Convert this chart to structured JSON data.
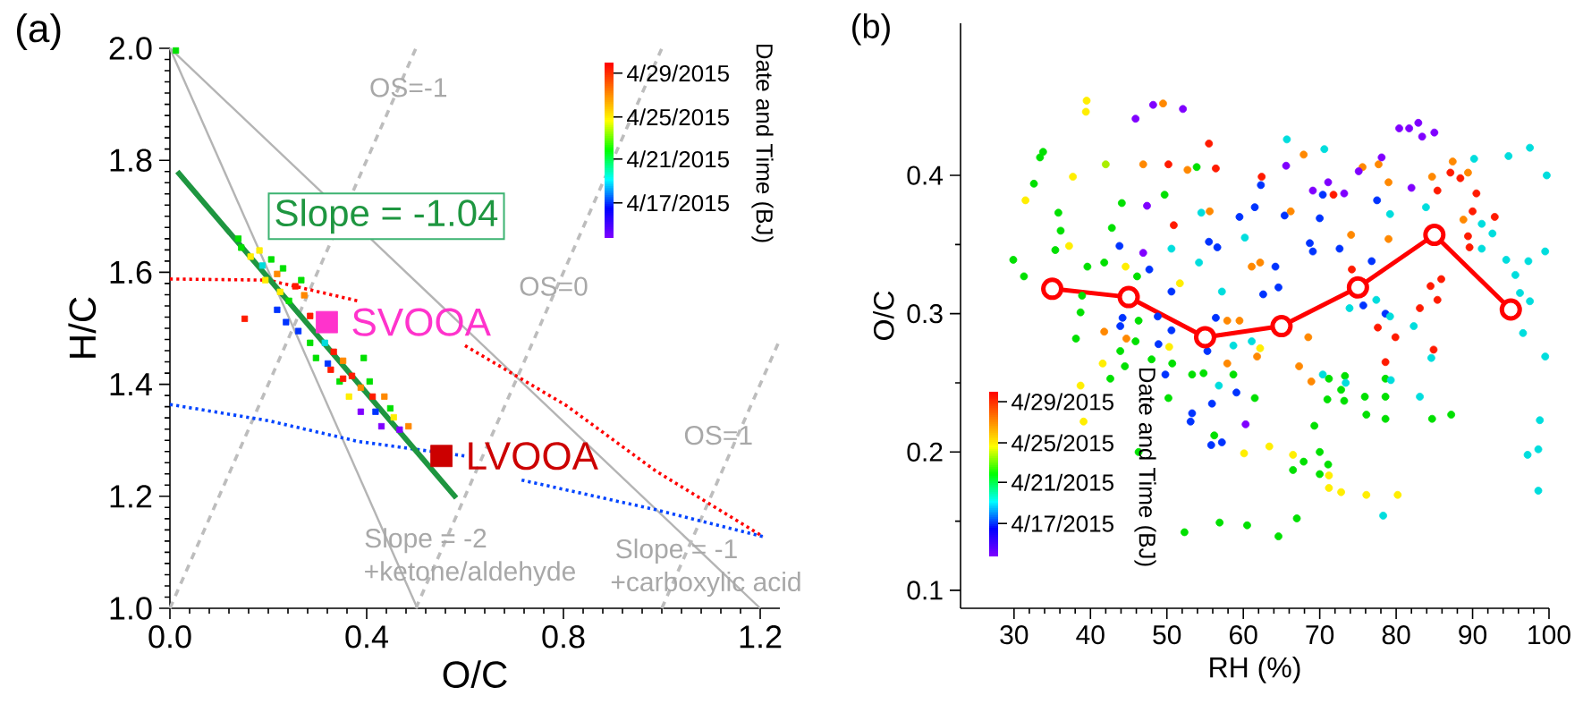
{
  "chart_data": [
    {
      "type": "scatter",
      "title": "(a)",
      "xlabel": "O/C",
      "ylabel": "H/C",
      "clabel": "Date and Time (BJ)",
      "xlim": [
        0,
        1.24
      ],
      "ylim": [
        1.0,
        2.0
      ],
      "xticks": [
        {
          "value": 0,
          "label": "0.0"
        },
        0.4,
        0.8,
        1.2
      ],
      "yticks": [
        {
          "value": 1,
          "label": "1.0"
        },
        1.2,
        1.4,
        1.6,
        1.8,
        {
          "value": 2,
          "label": "2.0"
        }
      ],
      "series": [
        {
          "type": "line",
          "color": "#b4b4b4",
          "x": [
            0,
            1.2
          ],
          "values": [
            2.0,
            1.0
          ]
        },
        {
          "type": "line",
          "color": "#b4b4b4",
          "x": [
            0,
            0.503
          ],
          "values": [
            2.0,
            1.0
          ]
        },
        {
          "type": "line",
          "color": "#bdbdbd",
          "line_style": "dashed",
          "x": [
            0.0,
            0.5
          ],
          "values": [
            1.0,
            2.0
          ]
        },
        {
          "type": "line",
          "color": "#bdbdbd",
          "line_style": "dashed",
          "x": [
            0.5,
            1.0
          ],
          "values": [
            1.0,
            2.0
          ]
        },
        {
          "type": "line",
          "color": "#bdbdbd",
          "line_style": "dashed",
          "x": [
            1.0,
            1.24
          ],
          "values": [
            1.0,
            1.48
          ]
        },
        {
          "type": "line",
          "color": "#ff0000",
          "line_style": "dotted",
          "x": [
            0,
            0.2,
            0.382,
            0.45,
            0.6,
            0.806,
            0.988,
            1.206
          ],
          "values": [
            1.588,
            1.586,
            1.549,
            null,
            1.469,
            1.362,
            1.245,
            1.128
          ]
        },
        {
          "type": "line",
          "color": "#0044ff",
          "line_style": "dotted",
          "x": [
            0,
            0.2,
            0.382,
            0.6,
            0.65,
            0.715,
            0.988,
            1.206
          ],
          "values": [
            1.364,
            1.335,
            1.298,
            1.272,
            null,
            1.229,
            1.176,
            1.128
          ]
        },
        {
          "marker": "square",
          "x": [
            0.012,
            0.152,
            0.139,
            0.145,
            0.164,
            0.188,
            0.206,
            0.194,
            0.218,
            0.224,
            0.218,
            0.242,
            0.236,
            0.255,
            0.267,
            0.273,
            0.261,
            0.285,
            0.285,
            0.297,
            0.315,
            0.333,
            0.327,
            0.352,
            0.37,
            0.345,
            0.394,
            0.388,
            0.406,
            0.412,
            0.436,
            0.388,
            0.418,
            0.448,
            0.43,
            0.467,
            0.485,
            0.455,
            0.364,
            0.352,
            0.321,
            0.182,
            0.23
          ],
          "values": [
            1.996,
            1.517,
            1.66,
            1.644,
            1.628,
            1.612,
            1.623,
            1.586,
            1.597,
            1.565,
            1.533,
            1.549,
            1.511,
            1.575,
            1.586,
            1.559,
            1.495,
            1.522,
            1.474,
            1.447,
            1.474,
            1.458,
            1.426,
            1.442,
            1.415,
            1.405,
            1.447,
            1.394,
            1.405,
            1.378,
            1.378,
            1.351,
            1.351,
            1.357,
            1.325,
            1.319,
            1.325,
            1.341,
            1.378,
            1.41,
            1.437,
            1.639,
            1.607
          ],
          "colors": [
            "#00e000",
            "#ff1a00",
            "#00e000",
            "#00e000",
            "#ffee00",
            "#00dddd",
            "#00e000",
            "#ffee00",
            "#ff8800",
            "#ffee00",
            "#0033ff",
            "#00e000",
            "#0033ff",
            "#ff1a00",
            "#00e000",
            "#ff8800",
            "#0033ff",
            "#ff1a00",
            "#00e000",
            "#00e000",
            "#00dddd",
            "#ff1a00",
            "#ff1a00",
            "#ff8800",
            "#ff1a00",
            "#00e000",
            "#00e000",
            "#ff8800",
            "#00e000",
            "#ff1a00",
            "#ff8800",
            "#7f00ff",
            "#0033ff",
            "#00e000",
            "#7f00ff",
            "#7f00ff",
            "#ff8800",
            "#ffee00",
            "#ffee00",
            "#ff1a00",
            "#0033ff",
            "#ffee00",
            "#00e000"
          ]
        },
        {
          "type": "line",
          "color": "#1e9640",
          "x": [
            0.015,
            0.582
          ],
          "values": [
            1.78,
            1.197
          ]
        },
        {
          "name": "SVOOA",
          "color": "#ff33cc",
          "marker": "square",
          "x": [
            0.319
          ],
          "values": [
            1.511
          ]
        },
        {
          "name": "LVOOA",
          "color": "#cc0000",
          "marker": "square",
          "x": [
            0.552
          ],
          "values": [
            1.272
          ]
        }
      ],
      "annotations": [
        "Slope = -1.04",
        "OS=-1",
        "OS=0",
        "OS=1",
        "Slope = -2",
        "+ketone/aldehyde",
        "Slope = -1",
        "+carboxylic acid",
        "4/29/2015",
        "4/25/2015",
        "4/21/2015",
        "4/17/2015"
      ]
    },
    {
      "type": "scatter",
      "title": "(b)",
      "xlabel": "RH (%)",
      "ylabel": "O/C",
      "clabel": "Date and Time (BJ)",
      "xlim": [
        23,
        100
      ],
      "ylim": [
        0.087,
        0.51
      ],
      "xticks": [
        30,
        40,
        50,
        60,
        70,
        80,
        90,
        100
      ],
      "yticks": [
        0.1,
        0.2,
        0.3,
        0.4
      ],
      "series": [
        {
          "marker": "circle",
          "x": [
            39.5,
            39.4,
            45.9,
            48.2,
            49.5,
            52.1,
            33.4,
            33.8,
            37.7,
            42.0,
            32.6,
            31.5,
            46.9,
            50.2,
            55.5,
            56.4,
            52.7,
            53.9,
            44.1,
            42.8,
            50.9,
            49.7,
            47.4,
            55.6,
            54.5,
            59.5,
            61.5,
            62.4,
            62.3,
            35.8,
            36.1,
            35.4,
            37.2,
            29.9,
            31.3,
            39.6,
            41.8,
            43.8,
            44.6,
            46.9,
            47.7,
            46.1,
            50.6,
            51.7,
            54.2,
            55.5,
            56.6,
            57.2,
            50.6,
            61.1,
            60.2,
            38.9,
            38.7,
            43.9,
            44.2,
            46.3,
            48.8,
            50.6,
            41.8,
            38.1,
            44.7,
            45.9,
            48.9,
            50.3,
            55.3,
            56.4,
            57.9,
            59.5,
            58.7,
            61.1,
            61.8,
            62.2,
            43.9,
            41.6,
            44.5,
            48.0,
            49.8,
            50.7,
            53.3,
            54.8,
            57.9,
            58.7,
            56.8,
            59.1,
            61.5,
            42.6,
            38.7,
            50.2,
            53.3,
            53.1,
            55.9,
            60.3,
            56.2,
            57.2,
            55.8,
            60.1,
            39.1,
            46.3,
            52.3,
            56.9,
            60.5,
            80.4,
            81.7,
            82.9,
            83.4,
            85.0,
            65.7,
            67.9,
            70.6,
            65.6,
            75.6,
            77.7,
            78.1,
            75.1,
            71.1,
            69.1,
            73.2,
            71.8,
            70.4,
            79.0,
            82.0,
            84.7,
            85.4,
            87.4,
            87.1,
            88.4,
            89.4,
            90.2,
            90.5,
            94.7,
            97.5,
            99.7,
            77.5,
            79.2,
            83.9,
            88.8,
            90.0,
            91.2,
            92.9,
            92.6,
            89.4,
            89.6,
            91.2,
            70.0,
            68.7,
            69.1,
            72.6,
            74.1,
            79.0,
            65.4,
            66.2,
            64.2,
            62.2,
            64.6,
            62.6,
            74.2,
            76.8,
            84.5,
            85.9,
            85.4,
            83.1,
            94.4,
            95.6,
            97.3,
            99.5,
            96.2,
            97.5,
            96.6,
            99.5,
            98.8,
            98.6,
            97.2,
            98.6,
            73.9,
            75.7,
            77.4,
            78.6,
            79.2,
            77.6,
            79.9,
            82.3,
            84.9,
            84.6,
            78.6,
            68.5,
            67.3,
            68.9,
            70.4,
            71.2,
            73.3,
            73.4,
            78.6,
            79.3,
            72.8,
            71.0,
            73.2,
            75.9,
            78.6,
            83.1,
            76.1,
            78.6,
            84.7,
            87.2,
            69.3,
            63.4,
            66.5,
            66.5,
            67.9,
            70.0,
            71.1,
            70.0,
            71.2,
            71.2,
            72.8,
            76.1,
            80.2,
            78.3,
            67.0,
            64.6
          ],
          "values": [
            0.454,
            0.446,
            0.441,
            0.451,
            0.452,
            0.448,
            0.413,
            0.417,
            0.399,
            0.408,
            0.394,
            0.382,
            0.408,
            0.408,
            0.423,
            0.405,
            0.404,
            0.406,
            0.38,
            0.362,
            0.364,
            0.386,
            0.378,
            0.374,
            0.373,
            0.37,
            0.377,
            0.399,
            0.393,
            0.373,
            0.36,
            0.346,
            0.349,
            0.339,
            0.327,
            0.334,
            0.337,
            0.349,
            0.334,
            0.344,
            0.332,
            0.327,
            0.347,
            0.322,
            0.337,
            0.352,
            0.348,
            0.316,
            0.316,
            0.334,
            0.355,
            0.313,
            0.301,
            0.291,
            0.297,
            0.295,
            0.298,
            0.288,
            0.287,
            0.282,
            0.282,
            0.28,
            0.278,
            0.276,
            0.273,
            0.297,
            0.295,
            0.295,
            0.277,
            0.28,
            0.269,
            0.275,
            0.273,
            0.264,
            0.262,
            0.267,
            0.256,
            0.264,
            0.256,
            0.257,
            0.264,
            0.256,
            0.248,
            0.243,
            0.239,
            0.253,
            0.248,
            0.239,
            0.228,
            0.222,
            0.235,
            0.22,
            0.212,
            0.207,
            0.205,
            0.199,
            0.222,
            0.2,
            0.142,
            0.149,
            0.147,
            0.434,
            0.434,
            0.438,
            0.428,
            0.431,
            0.426,
            0.415,
            0.419,
            0.407,
            0.406,
            0.408,
            0.413,
            0.403,
            0.395,
            0.389,
            0.387,
            0.386,
            0.386,
            0.395,
            0.391,
            0.399,
            0.389,
            0.41,
            0.402,
            0.398,
            0.402,
            0.412,
            0.387,
            0.414,
            0.42,
            0.4,
            0.382,
            0.372,
            0.377,
            0.368,
            0.374,
            0.365,
            0.37,
            0.358,
            0.356,
            0.348,
            0.347,
            0.369,
            0.351,
            0.345,
            0.347,
            0.357,
            0.354,
            0.371,
            0.374,
            0.334,
            0.337,
            0.319,
            0.314,
            0.332,
            0.338,
            0.32,
            0.325,
            0.31,
            0.304,
            0.339,
            0.328,
            0.338,
            0.345,
            0.315,
            0.309,
            0.286,
            0.269,
            0.223,
            0.202,
            0.198,
            0.172,
            0.304,
            0.306,
            0.31,
            0.3,
            0.298,
            0.29,
            0.283,
            0.291,
            0.274,
            0.268,
            0.265,
            0.283,
            0.262,
            0.251,
            0.256,
            0.253,
            0.255,
            0.25,
            0.253,
            0.252,
            0.245,
            0.238,
            0.237,
            0.24,
            0.24,
            0.24,
            0.227,
            0.224,
            0.224,
            0.227,
            0.219,
            0.204,
            0.198,
            0.187,
            0.193,
            0.2,
            0.191,
            0.184,
            0.183,
            0.174,
            0.171,
            0.169,
            0.169,
            0.154,
            0.152,
            0.139
          ],
          "colors": [
            "#ffee00",
            "#ffee00",
            "#7f00ff",
            "#7f00ff",
            "#ff8800",
            "#7f00ff",
            "#00e000",
            "#00e000",
            "#ffee00",
            "#aaee00",
            "#00e000",
            "#ffee00",
            "#ff8800",
            "#ff1a00",
            "#ff1a00",
            "#ff1a00",
            "#ff8800",
            "#00e000",
            "#00e000",
            "#00e000",
            "#ff1a00",
            "#00e000",
            "#7f00ff",
            "#ff8800",
            "#00dddd",
            "#0033ff",
            "#0033ff",
            "#ff1a00",
            "#0033ff",
            "#00e000",
            "#00e000",
            "#00e000",
            "#ffee00",
            "#00e000",
            "#00e000",
            "#00e000",
            "#00e000",
            "#0033ff",
            "#ffee00",
            "#7f00ff",
            "#0033ff",
            "#00e000",
            "#00dddd",
            "#ffee00",
            "#00dddd",
            "#0033ff",
            "#0033ff",
            "#00dddd",
            "#0033ff",
            "#ff8800",
            "#00dddd",
            "#00e000",
            "#00e000",
            "#0033ff",
            "#0033ff",
            "#00e000",
            "#0033ff",
            "#0033ff",
            "#ff8800",
            "#00e000",
            "#ff8800",
            "#00e000",
            "#0033ff",
            "#ffee00",
            "#0033ff",
            "#0033ff",
            "#ff8800",
            "#ff8800",
            "#00dddd",
            "#00dddd",
            "#ff8800",
            "#ffee00",
            "#00e000",
            "#ffee00",
            "#00e000",
            "#00e000",
            "#0033ff",
            "#00e000",
            "#00e000",
            "#00e000",
            "#ff8800",
            "#00e000",
            "#00dddd",
            "#0033ff",
            "#00e000",
            "#00e000",
            "#ffee00",
            "#00e000",
            "#0033ff",
            "#0033ff",
            "#0033ff",
            "#7f00ff",
            "#00e000",
            "#0033ff",
            "#0033ff",
            "#ffee00",
            "#ffee00",
            "#00e000",
            "#00e000",
            "#00e000",
            "#00e000",
            "#7f00ff",
            "#7f00ff",
            "#7f00ff",
            "#7f00ff",
            "#7f00ff",
            "#00dddd",
            "#ff8800",
            "#00dddd",
            "#7f00ff",
            "#ff8800",
            "#ff8800",
            "#7f00ff",
            "#7f00ff",
            "#7f00ff",
            "#7f00ff",
            "#7f00ff",
            "#ff1a00",
            "#0033ff",
            "#ff8800",
            "#7f00ff",
            "#ff8800",
            "#ff1a00",
            "#ff8800",
            "#ff1a00",
            "#ff1a00",
            "#ff8800",
            "#00dddd",
            "#ff1a00",
            "#00dddd",
            "#00dddd",
            "#00dddd",
            "#0033ff",
            "#00dddd",
            "#00dddd",
            "#ff8800",
            "#ff1a00",
            "#00dddd",
            "#ff1a00",
            "#00dddd",
            "#ff1a00",
            "#ff1a00",
            "#00dddd",
            "#0033ff",
            "#0033ff",
            "#0033ff",
            "#0033ff",
            "#ff8800",
            "#ff8800",
            "#0033ff",
            "#ff8800",
            "#0033ff",
            "#ff8800",
            "#0033ff",
            "#0033ff",
            "#ff1a00",
            "#0033ff",
            "#ff1a00",
            "#ff1a00",
            "#ff1a00",
            "#ff1a00",
            "#00dddd",
            "#00dddd",
            "#00dddd",
            "#00dddd",
            "#00dddd",
            "#00dddd",
            "#00dddd",
            "#00dddd",
            "#00dddd",
            "#00dddd",
            "#00dddd",
            "#00dddd",
            "#00dddd",
            "#0033ff",
            "#00dddd",
            "#0033ff",
            "#00dddd",
            "#ff1a00",
            "#ff1a00",
            "#00dddd",
            "#ff1a00",
            "#00dddd",
            "#ff1a00",
            "#ff8800",
            "#ff8800",
            "#ff8800",
            "#00dddd",
            "#00e000",
            "#00e000",
            "#00dddd",
            "#00e000",
            "#00dddd",
            "#00e000",
            "#00e000",
            "#00e000",
            "#00e000",
            "#00e000",
            "#00dddd",
            "#00e000",
            "#00e000",
            "#00e000",
            "#00e000",
            "#00e000",
            "#ffee00",
            "#ffee00",
            "#00e000",
            "#00e000",
            "#00e000",
            "#00e000",
            "#00e000",
            "#ffee00",
            "#ffee00",
            "#ffee00",
            "#ffee00",
            "#ffee00",
            "#00dddd",
            "#00e000",
            "#00e000"
          ]
        },
        {
          "type": "line",
          "color": "#ff0000",
          "marker": "circle",
          "x": [
            35,
            45,
            55,
            65,
            75,
            85,
            95
          ],
          "values": [
            0.318,
            0.312,
            0.283,
            0.291,
            0.319,
            0.357,
            0.303
          ]
        }
      ],
      "annotations": [
        "4/29/2015",
        "4/25/2015",
        "4/21/2015",
        "4/17/2015"
      ]
    }
  ]
}
